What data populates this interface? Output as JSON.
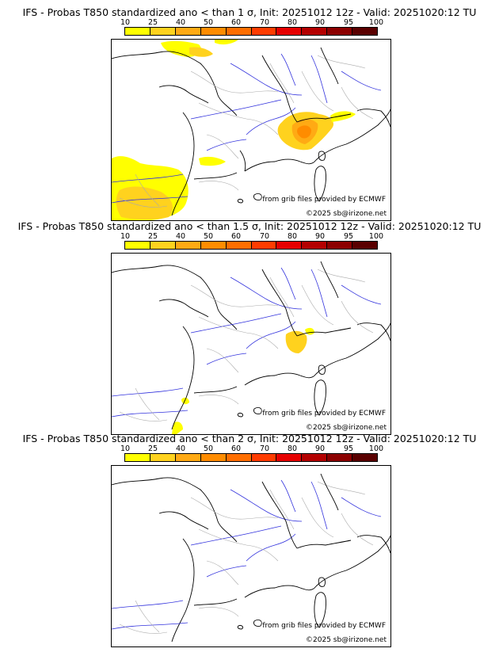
{
  "panels": [
    {
      "title": "IFS - Probas T850  standardized ano < than 1 σ, Init: 20251012 12z - Valid: 20251020:12 TU",
      "threshold_sigma": "1",
      "data_credit": "from grib files provided by ECMWF",
      "copyright": "©2025 sb@irizone.net",
      "probability_areas": [
        {
          "region": "Northwest Alps",
          "max_level": "50-60"
        },
        {
          "region": "Northwest Spain",
          "max_level": "25-40"
        },
        {
          "region": "Southwest France",
          "max_level": "10-25"
        },
        {
          "region": "English Channel coast",
          "max_level": "10-25"
        }
      ]
    },
    {
      "title": "IFS - Probas T850  standardized ano < than 1.5 σ, Init: 20251012 12z - Valid: 20251020:12 TU",
      "threshold_sigma": "1.5",
      "data_credit": "from grib files provided by ECMWF",
      "copyright": "©2025 sb@irizone.net",
      "probability_areas": [
        {
          "region": "Western Alps",
          "max_level": "25-40"
        },
        {
          "region": "Pyrenees",
          "max_level": "10-25"
        }
      ]
    },
    {
      "title": "IFS - Probas T850  standardized ano < than 2 σ, Init: 20251012 12z - Valid: 20251020:12 TU",
      "threshold_sigma": "2",
      "data_credit": "from grib files provided by ECMWF",
      "copyright": "©2025 sb@irizone.net",
      "probability_areas": []
    }
  ],
  "legend": {
    "ticks": [
      "10",
      "25",
      "40",
      "50",
      "60",
      "70",
      "80",
      "90",
      "95",
      "100"
    ],
    "colors": [
      "#ffff00",
      "#ffd21e",
      "#ffaa14",
      "#ff8c00",
      "#ff6e00",
      "#ff3c00",
      "#e60000",
      "#b40000",
      "#8c0000",
      "#5a0000"
    ]
  }
}
